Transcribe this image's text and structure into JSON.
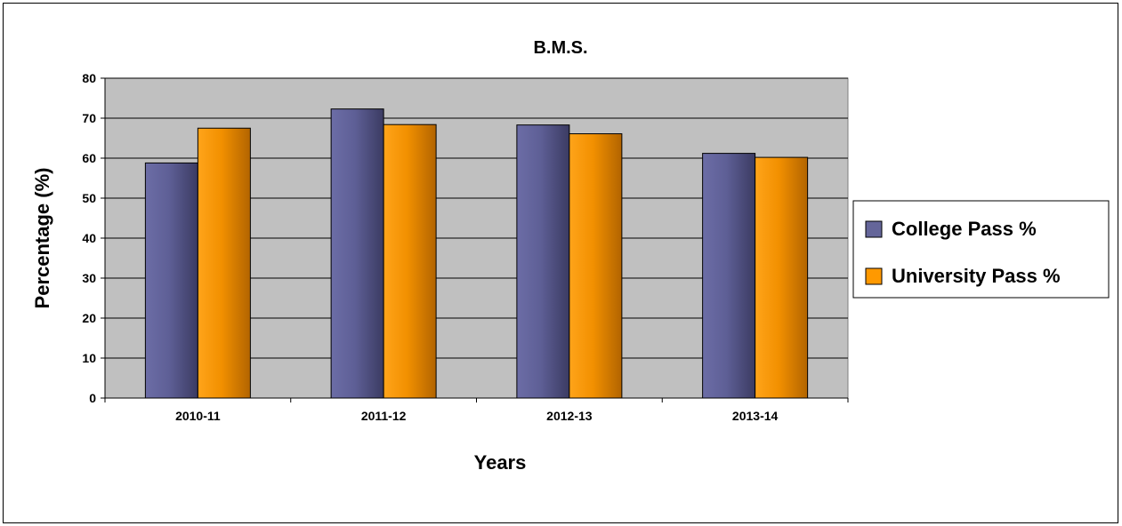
{
  "chart_data": {
    "type": "bar",
    "title": "B.M.S.",
    "xlabel": "Years",
    "ylabel": "Percentage (%)",
    "categories": [
      "2010-11",
      "2011-12",
      "2012-13",
      "2013-14"
    ],
    "series": [
      {
        "name": "College Pass %",
        "values": [
          58.8,
          72.3,
          68.3,
          61.2
        ],
        "color": "#65669a"
      },
      {
        "name": "University Pass %",
        "values": [
          67.5,
          68.4,
          66.1,
          60.2
        ],
        "color": "#ff9900"
      }
    ],
    "ylim": [
      0,
      80
    ],
    "yticks": [
      0,
      10,
      20,
      30,
      40,
      50,
      60,
      70,
      80
    ],
    "grid": true,
    "legend_position": "right",
    "plot_background": "#c0c0c0"
  }
}
